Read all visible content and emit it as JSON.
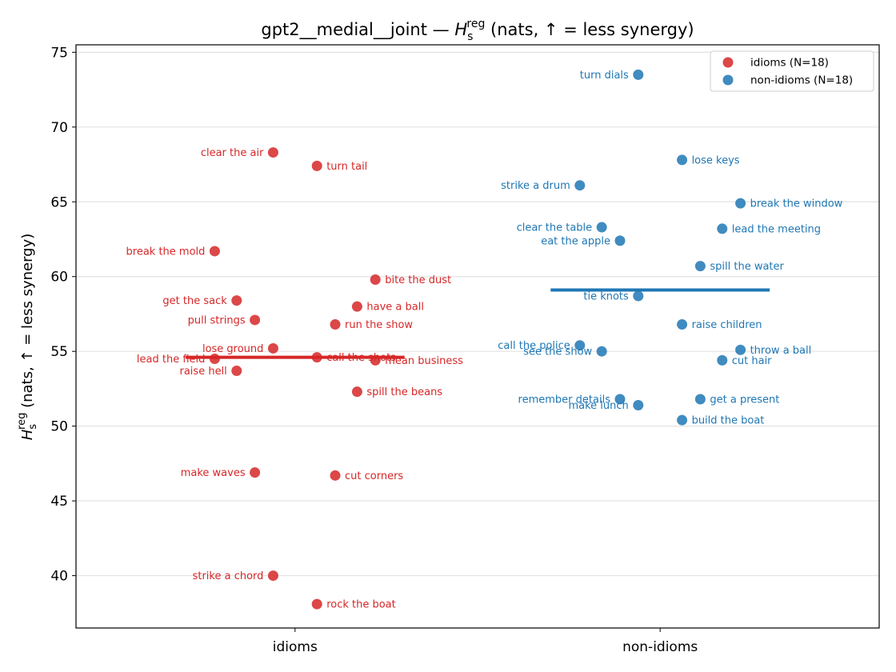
{
  "chart_data": {
    "type": "scatter",
    "title_main": "gpt2__medial__joint — ",
    "title_math_base": "H",
    "title_math_sub": "s",
    "title_math_sup": "reg",
    "title_suffix": " (nats, ↑ = less synergy)",
    "ylabel_base": "H",
    "ylabel_sub": "s",
    "ylabel_sup": "reg",
    "ylabel_suffix": " (nats, ↑ = less synergy)",
    "categories": [
      "idioms",
      "non-idioms"
    ],
    "ylim": [
      36.5,
      75.5
    ],
    "yticks": [
      "40",
      "45",
      "50",
      "55",
      "60",
      "65",
      "70",
      "75"
    ],
    "grid": "horizontal",
    "legend_position": "top-right",
    "series": [
      {
        "name": "idioms (N=18)",
        "category": "idioms",
        "color": "#d62728",
        "mean": 54.6,
        "points": [
          {
            "label": "clear the air",
            "x": -0.06,
            "y": 68.3,
            "side": "left"
          },
          {
            "label": "turn tail",
            "x": 0.06,
            "y": 67.4,
            "side": "right"
          },
          {
            "label": "break the mold",
            "x": -0.22,
            "y": 61.7,
            "side": "left"
          },
          {
            "label": "bite the dust",
            "x": 0.22,
            "y": 59.8,
            "side": "right"
          },
          {
            "label": "get the sack",
            "x": -0.16,
            "y": 58.4,
            "side": "left"
          },
          {
            "label": "have a ball",
            "x": 0.17,
            "y": 58.0,
            "side": "right"
          },
          {
            "label": "pull strings",
            "x": -0.11,
            "y": 57.1,
            "side": "left"
          },
          {
            "label": "run the show",
            "x": 0.11,
            "y": 56.8,
            "side": "right"
          },
          {
            "label": "lose ground",
            "x": -0.06,
            "y": 55.2,
            "side": "left"
          },
          {
            "label": "call the shots",
            "x": 0.06,
            "y": 54.6,
            "side": "right"
          },
          {
            "label": "lead the field",
            "x": -0.22,
            "y": 54.5,
            "side": "left"
          },
          {
            "label": "mean business",
            "x": 0.22,
            "y": 54.4,
            "side": "right"
          },
          {
            "label": "raise hell",
            "x": -0.16,
            "y": 53.7,
            "side": "left"
          },
          {
            "label": "spill the beans",
            "x": 0.17,
            "y": 52.3,
            "side": "right"
          },
          {
            "label": "make waves",
            "x": -0.11,
            "y": 46.9,
            "side": "left"
          },
          {
            "label": "cut corners",
            "x": 0.11,
            "y": 46.7,
            "side": "right"
          },
          {
            "label": "strike a chord",
            "x": -0.06,
            "y": 40.0,
            "side": "left"
          },
          {
            "label": "rock the boat",
            "x": 0.06,
            "y": 38.1,
            "side": "right"
          }
        ]
      },
      {
        "name": "non-idioms (N=18)",
        "category": "non-idioms",
        "color": "#1f77b4",
        "mean": 59.1,
        "points": [
          {
            "label": "turn dials",
            "x": -0.06,
            "y": 73.5,
            "side": "left"
          },
          {
            "label": "lose keys",
            "x": 0.06,
            "y": 67.8,
            "side": "right"
          },
          {
            "label": "strike a drum",
            "x": -0.22,
            "y": 66.1,
            "side": "left"
          },
          {
            "label": "break the window",
            "x": 0.22,
            "y": 64.9,
            "side": "right"
          },
          {
            "label": "clear the table",
            "x": -0.16,
            "y": 63.3,
            "side": "left"
          },
          {
            "label": "lead the meeting",
            "x": 0.17,
            "y": 63.2,
            "side": "right"
          },
          {
            "label": "eat the apple",
            "x": -0.11,
            "y": 62.4,
            "side": "left"
          },
          {
            "label": "spill the water",
            "x": 0.11,
            "y": 60.7,
            "side": "right"
          },
          {
            "label": "tie knots",
            "x": -0.06,
            "y": 58.7,
            "side": "left"
          },
          {
            "label": "raise children",
            "x": 0.06,
            "y": 56.8,
            "side": "right"
          },
          {
            "label": "call the police",
            "x": -0.22,
            "y": 55.4,
            "side": "left"
          },
          {
            "label": "throw a ball",
            "x": 0.22,
            "y": 55.1,
            "side": "right"
          },
          {
            "label": "see the show",
            "x": -0.16,
            "y": 55.0,
            "side": "left"
          },
          {
            "label": "cut hair",
            "x": 0.17,
            "y": 54.4,
            "side": "right"
          },
          {
            "label": "remember details",
            "x": -0.11,
            "y": 51.8,
            "side": "left"
          },
          {
            "label": "get a present",
            "x": 0.11,
            "y": 51.8,
            "side": "right"
          },
          {
            "label": "make lunch",
            "x": -0.06,
            "y": 51.4,
            "side": "left"
          },
          {
            "label": "build the boat",
            "x": 0.06,
            "y": 50.4,
            "side": "right"
          }
        ]
      }
    ]
  }
}
